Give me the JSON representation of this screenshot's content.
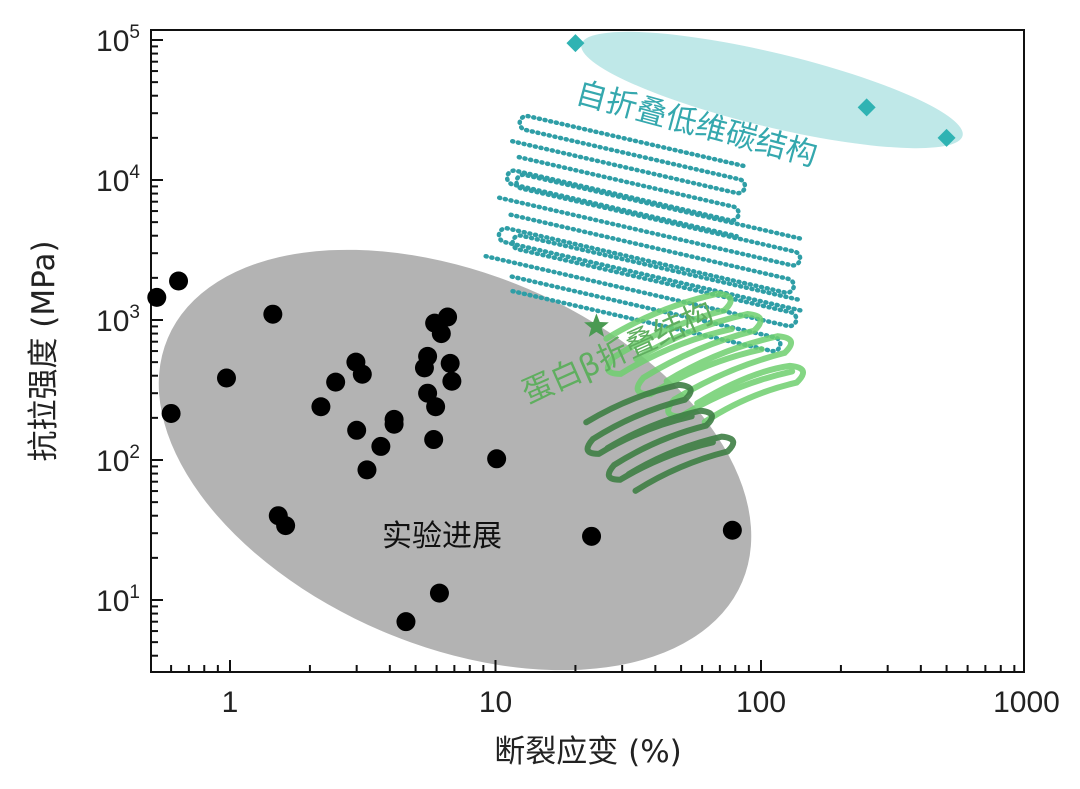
{
  "chart_data": {
    "type": "scatter",
    "title": "",
    "xlabel": "断裂应变 (%)",
    "ylabel": "抗拉强度 (MPa)",
    "xscale": "log",
    "yscale": "log",
    "xlim": [
      0.5,
      1000
    ],
    "ylim": [
      3,
      110000
    ],
    "xticks": [
      {
        "value": 1,
        "label": "1"
      },
      {
        "value": 10,
        "label": "10"
      },
      {
        "value": 100,
        "label": "100"
      },
      {
        "value": 1000,
        "label": "1000"
      }
    ],
    "yticks": [
      {
        "value": 10,
        "base": "10",
        "exp": "1"
      },
      {
        "value": 100,
        "base": "10",
        "exp": "2"
      },
      {
        "value": 1000,
        "base": "10",
        "exp": "3"
      },
      {
        "value": 10000,
        "base": "10",
        "exp": "4"
      },
      {
        "value": 100000,
        "base": "10",
        "exp": "5"
      }
    ],
    "grid": false,
    "series": [
      {
        "name": "",
        "marker": "circle",
        "color": "#000000",
        "points": [
          {
            "x": 0.53,
            "y": 1450
          },
          {
            "x": 0.64,
            "y": 1900
          },
          {
            "x": 0.6,
            "y": 215
          },
          {
            "x": 0.97,
            "y": 385
          },
          {
            "x": 1.45,
            "y": 1100
          },
          {
            "x": 1.52,
            "y": 40
          },
          {
            "x": 1.62,
            "y": 34
          },
          {
            "x": 2.2,
            "y": 240
          },
          {
            "x": 2.5,
            "y": 360
          },
          {
            "x": 2.98,
            "y": 500
          },
          {
            "x": 3.15,
            "y": 410
          },
          {
            "x": 3.0,
            "y": 163
          },
          {
            "x": 3.28,
            "y": 85
          },
          {
            "x": 3.7,
            "y": 125
          },
          {
            "x": 4.15,
            "y": 195
          },
          {
            "x": 4.15,
            "y": 180
          },
          {
            "x": 4.6,
            "y": 7
          },
          {
            "x": 5.4,
            "y": 455
          },
          {
            "x": 5.55,
            "y": 550
          },
          {
            "x": 5.55,
            "y": 300
          },
          {
            "x": 5.9,
            "y": 950
          },
          {
            "x": 6.25,
            "y": 800
          },
          {
            "x": 6.6,
            "y": 1050
          },
          {
            "x": 6.75,
            "y": 490
          },
          {
            "x": 6.85,
            "y": 365
          },
          {
            "x": 5.95,
            "y": 240
          },
          {
            "x": 5.85,
            "y": 140
          },
          {
            "x": 6.15,
            "y": 11.2
          },
          {
            "x": 10.1,
            "y": 102
          },
          {
            "x": 23,
            "y": 28.5
          },
          {
            "x": 78,
            "y": 31.5
          }
        ]
      },
      {
        "name": "",
        "marker": "star",
        "color": "#4a9a52",
        "points": [
          {
            "x": 24,
            "y": 900
          }
        ]
      },
      {
        "name": "",
        "marker": "diamond",
        "color": "#2fb3b3",
        "points": [
          {
            "x": 20,
            "y": 95000
          },
          {
            "x": 250,
            "y": 33000
          },
          {
            "x": 500,
            "y": 20000
          }
        ]
      }
    ],
    "annotations": [
      {
        "text": "实验进展",
        "color": "#111111"
      },
      {
        "text": "蛋白β折叠结构",
        "color": "#5fae5f"
      },
      {
        "text": "自折叠低维碳结构",
        "color": "#35a8ae"
      }
    ],
    "colors": {
      "grey_region": "#b3b3b3",
      "teal_region": "#bfe8e8",
      "teal_structure": "#2f9ea6",
      "green_structure": "#5cb85c",
      "green_dark": "#3f7f45"
    }
  }
}
